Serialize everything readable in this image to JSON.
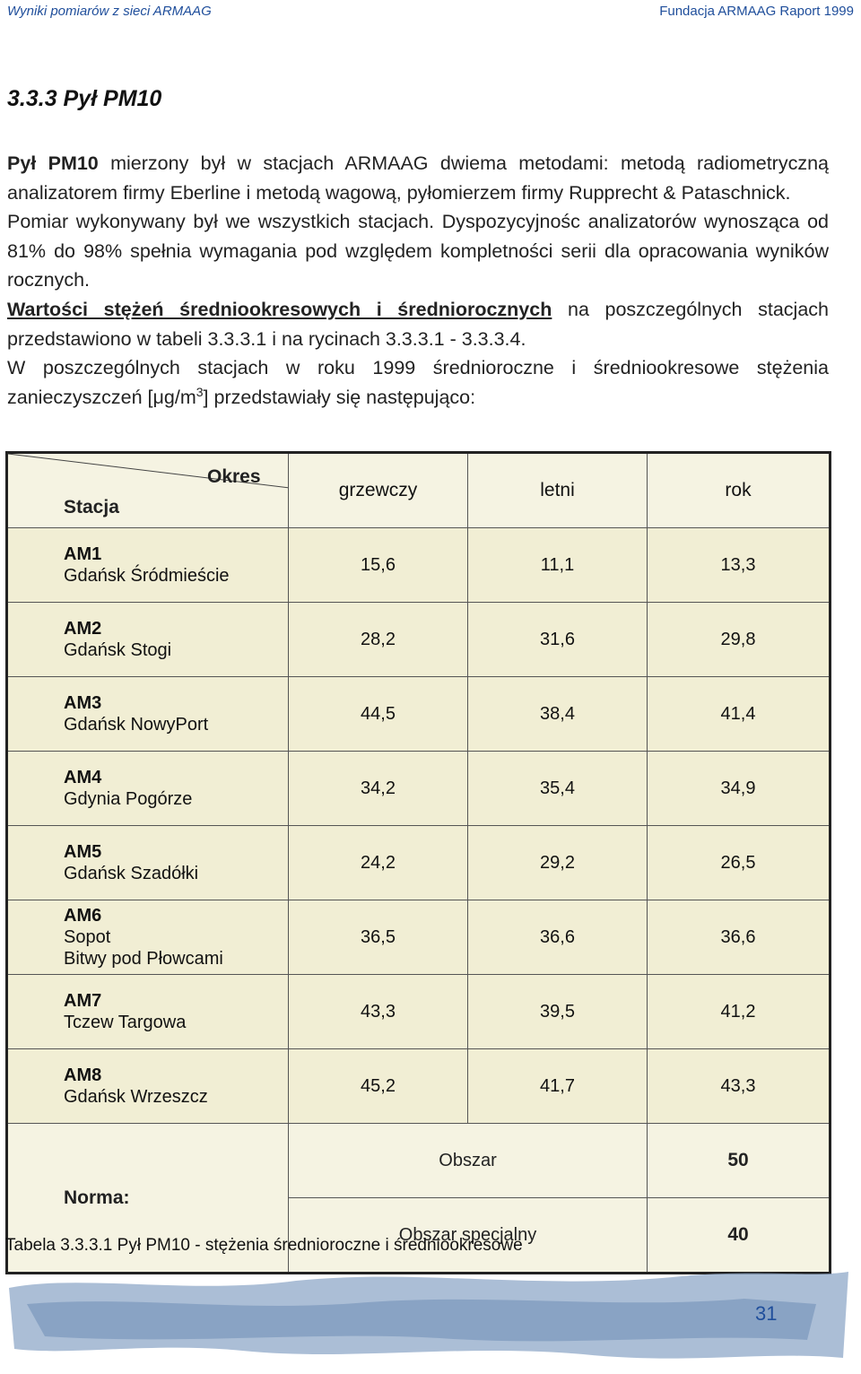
{
  "header": {
    "left": "Wyniki pomiarów z sieci ARMAAG",
    "right": "Fundacja ARMAAG Raport 1999"
  },
  "section_title": "3.3.3 Pył PM10",
  "paragraphs": {
    "p1_bold": "Pył PM10",
    "p1_rest": " mierzony był w stacjach ARMAAG dwiema metodami: metodą radiometryczną analizatorem firmy Eberline i metodą wagową, pyłomierzem firmy Rupprecht & Pataschnick.",
    "p2": "Pomiar wykonywany był we wszystkich stacjach. Dyspozycyjnośc analizatorów wynosząca od 81% do 98% spełnia wymagania pod względem kompletności serii dla opracowania wyników rocznych.",
    "p3_underlined": "Wartości stężeń średniookresowych i średniorocznych",
    "p3_rest": " na poszczególnych stacjach przedstawiono w tabeli  3.3.3.1 i na rycinach 3.3.3.1 - 3.3.3.4.",
    "p4_a": "W poszczególnych stacjach w roku 1999 średnioroczne i średniookresowe stężenia zanieczyszczeń [μg/m",
    "p4_sup": "3",
    "p4_b": "] przedstawiały się następująco:"
  },
  "table": {
    "corner_top": "Okres",
    "corner_bottom": "Stacja",
    "columns": [
      "grzewczy",
      "letni",
      "rok"
    ],
    "rows": [
      {
        "code": "AM1",
        "name": "Gdańsk Śródmieście",
        "values": [
          "15,6",
          "11,1",
          "13,3"
        ]
      },
      {
        "code": "AM2",
        "name": "Gdańsk  Stogi",
        "values": [
          "28,2",
          "31,6",
          "29,8"
        ]
      },
      {
        "code": "AM3",
        "name": "Gdańsk NowyPort",
        "values": [
          "44,5",
          "38,4",
          "41,4"
        ]
      },
      {
        "code": "AM4",
        "name": "Gdynia Pogórze",
        "values": [
          "34,2",
          "35,4",
          "34,9"
        ]
      },
      {
        "code": "AM5",
        "name": "Gdańsk Szadółki",
        "values": [
          "24,2",
          "29,2",
          "26,5"
        ]
      },
      {
        "code": "AM6",
        "name": "Sopot",
        "name2": "Bitwy pod Płowcami",
        "values": [
          "36,5",
          "36,6",
          "36,6"
        ]
      },
      {
        "code": "AM7",
        "name": "Tczew Targowa",
        "values": [
          "43,3",
          "39,5",
          "41,2"
        ]
      },
      {
        "code": "AM8",
        "name": "Gdańsk Wrzeszcz",
        "values": [
          "45,2",
          "41,7",
          "43,3"
        ]
      }
    ],
    "norma_label": "Norma:",
    "norma": [
      {
        "area": "Obszar",
        "value": "50"
      },
      {
        "area": "Obszar specjalny",
        "value": "40"
      }
    ]
  },
  "caption": "Tabela 3.3.3.1  Pył PM10  - stężenia średnioroczne i średniookresowe",
  "page_number": "31",
  "colors": {
    "accent_blue": "#1f4e9b",
    "table_bg": "#f1eed4",
    "brush": "#8fa8c8"
  }
}
